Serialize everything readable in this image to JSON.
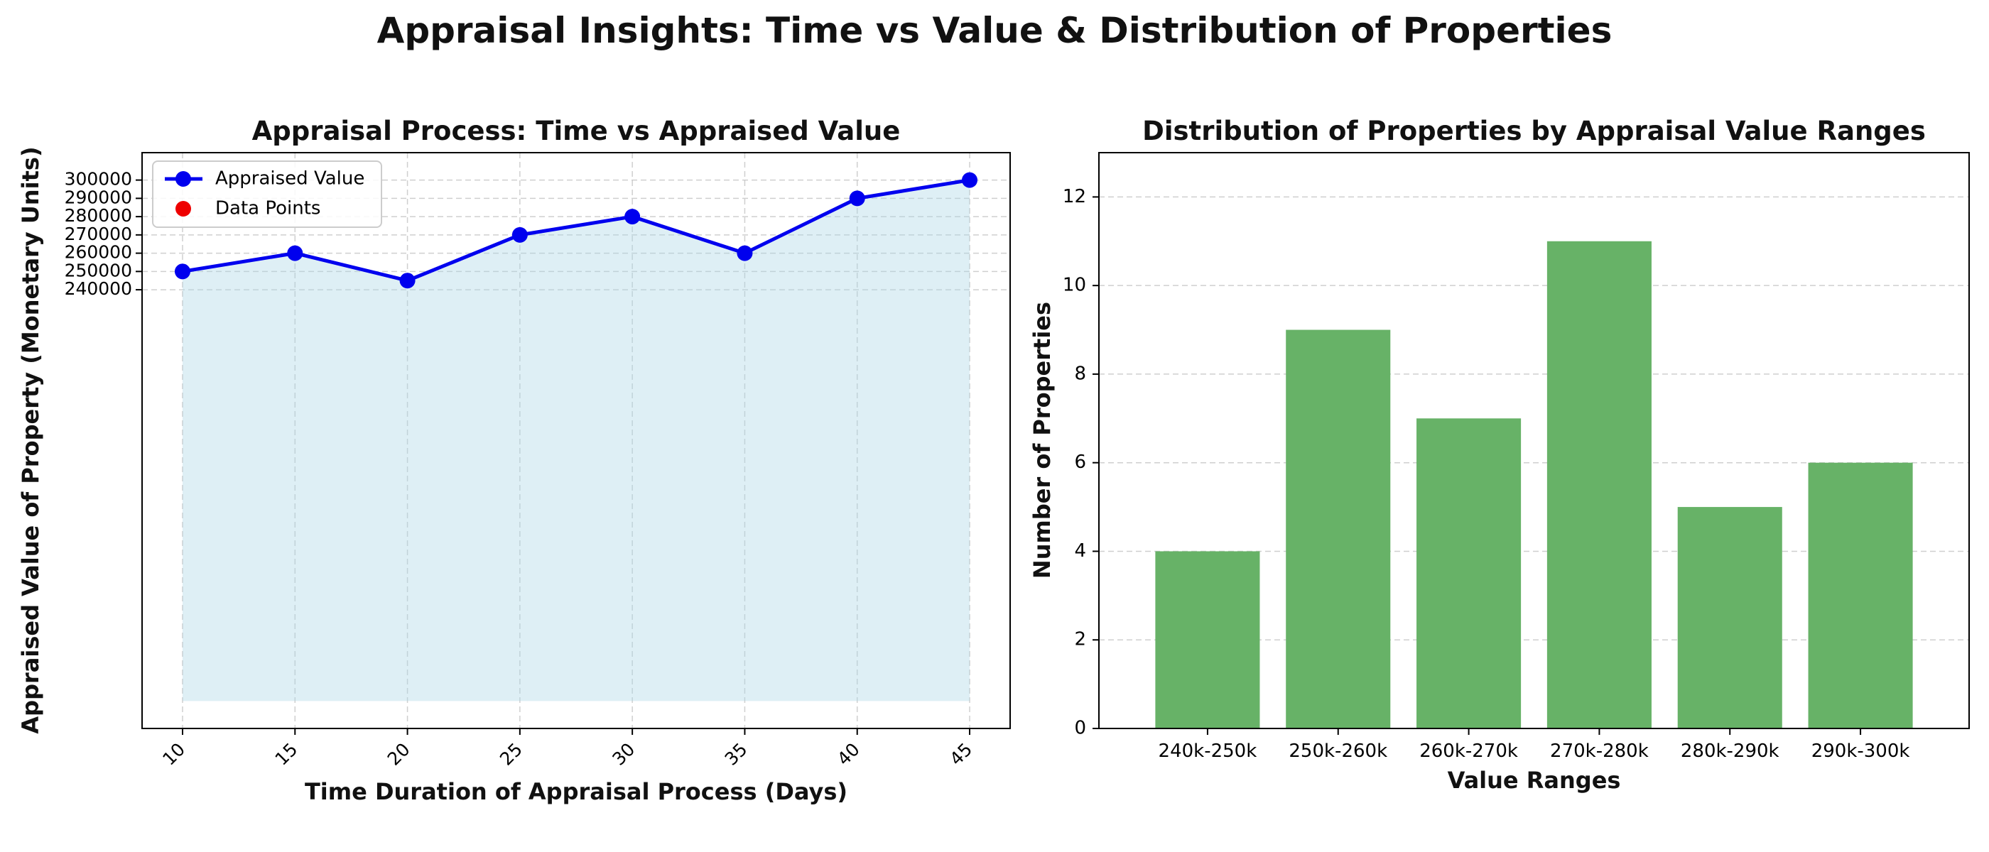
{
  "figure": {
    "title": "Appraisal Insights: Time vs Value & Distribution of Properties"
  },
  "chart_data": [
    {
      "type": "line",
      "title": "Appraisal Process: Time vs Appraised Value",
      "xlabel": "Time Duration of Appraisal Process (Days)",
      "ylabel": "Appraised Value of Property (Monetary Units)",
      "x": [
        10,
        15,
        20,
        25,
        30,
        35,
        40,
        45
      ],
      "xticks": [
        "10",
        "15",
        "20",
        "25",
        "30",
        "35",
        "40",
        "45"
      ],
      "xlim": [
        8.2,
        46.8
      ],
      "yticks": [
        "240000",
        "250000",
        "260000",
        "270000",
        "280000",
        "290000",
        "300000"
      ],
      "ylim": [
        0,
        315000
      ],
      "fill_baseline": 15000,
      "series": [
        {
          "name": "Appraised Value",
          "values": [
            250000,
            260000,
            245000,
            270000,
            280000,
            260000,
            290000,
            300000
          ]
        }
      ],
      "legend": [
        "Appraised Value",
        "Data Points"
      ],
      "legend_position": "top-left",
      "grid": true,
      "colors": {
        "line": "#0000ee",
        "marker": "#0000ee",
        "fill": "#add8e6",
        "data_points": "#ee0000"
      }
    },
    {
      "type": "bar",
      "title": "Distribution of Properties by Appraisal Value Ranges",
      "xlabel": "Value Ranges",
      "ylabel": "Number of Properties",
      "categories": [
        "240k-250k",
        "250k-260k",
        "260k-270k",
        "270k-280k",
        "280k-290k",
        "290k-300k"
      ],
      "values": [
        4,
        9,
        7,
        11,
        5,
        6
      ],
      "yticks": [
        "0",
        "2",
        "4",
        "6",
        "8",
        "10",
        "12"
      ],
      "ylim": [
        0,
        13
      ],
      "grid": true,
      "colors": {
        "bar": "#67b267"
      }
    }
  ]
}
